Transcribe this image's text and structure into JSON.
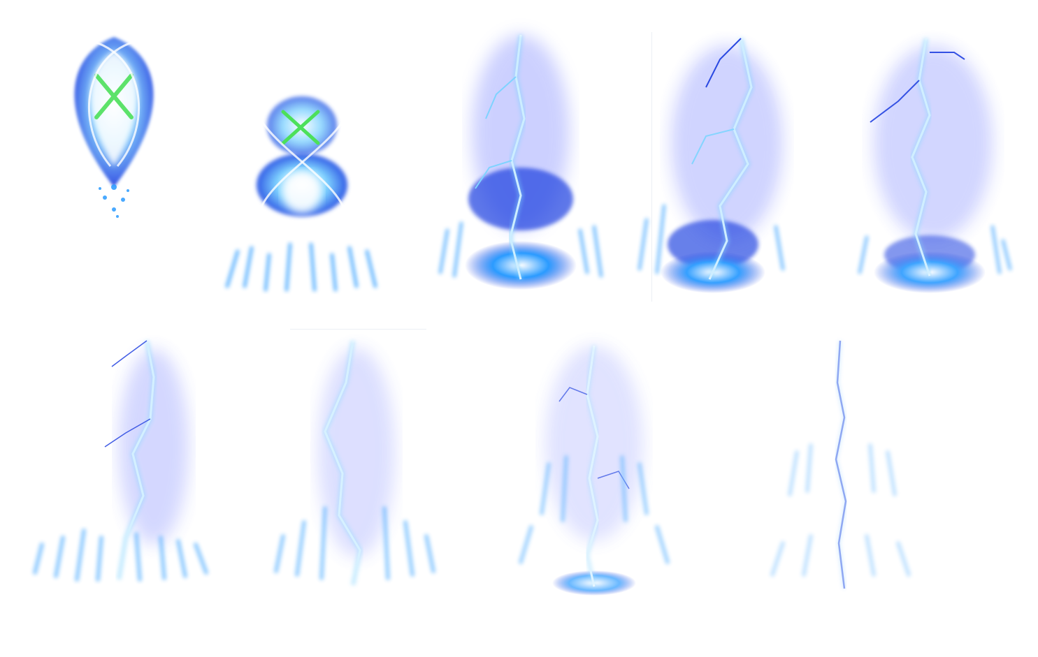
{
  "sprite_sheet": {
    "palette": {
      "core": "#ffffff",
      "bright": "#7fd3ff",
      "mid": "#2a9bff",
      "deep": "#1f3fe0",
      "glow": "#6f7cff",
      "accent": "#4ce05a"
    },
    "frames": [
      {
        "name": "frame-1-charge-orb",
        "kind": "orb",
        "intensity": 1.0
      },
      {
        "name": "frame-2-infinity-orb",
        "kind": "infinity",
        "intensity": 1.0
      },
      {
        "name": "frame-3-strike-portal",
        "kind": "strike-portal",
        "intensity": 1.0
      },
      {
        "name": "frame-4-strike-portal",
        "kind": "strike-portal",
        "intensity": 0.95
      },
      {
        "name": "frame-5-strike-portal",
        "kind": "strike-portal",
        "intensity": 0.9
      },
      {
        "name": "frame-6-strike-flames",
        "kind": "strike-flames",
        "intensity": 0.85
      },
      {
        "name": "frame-7-strike-flames",
        "kind": "strike-flames",
        "intensity": 0.8
      },
      {
        "name": "frame-8-strike-flames",
        "kind": "strike-flames",
        "intensity": 0.7
      },
      {
        "name": "frame-9-fade",
        "kind": "fade",
        "intensity": 0.5
      }
    ]
  }
}
